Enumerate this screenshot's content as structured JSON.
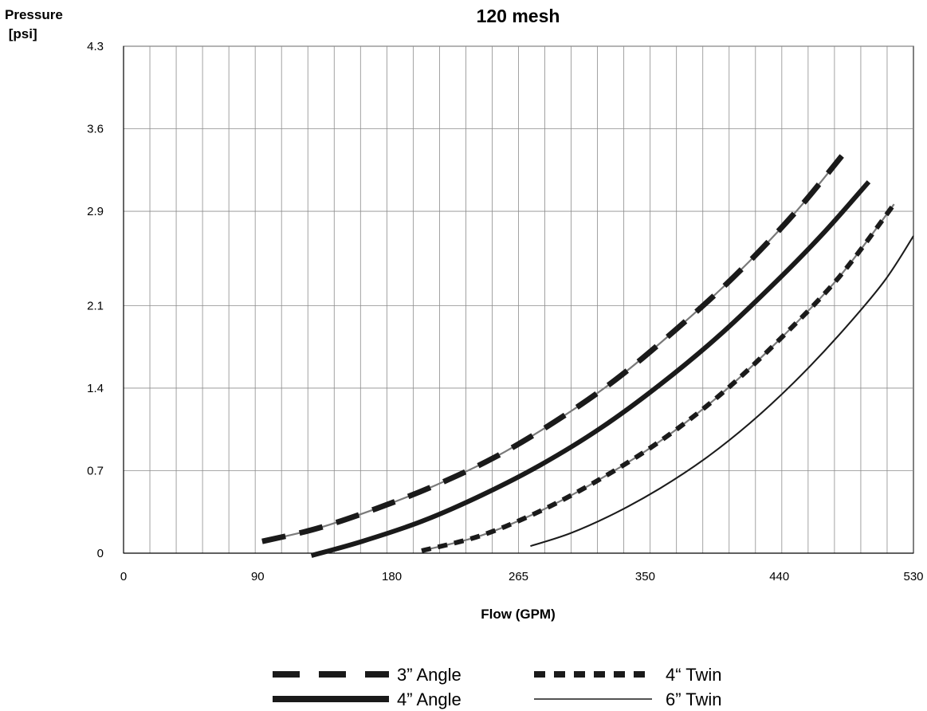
{
  "chart_data": {
    "type": "line",
    "title": "120 mesh",
    "ylabel_lines": [
      "Pressure",
      " [psi]"
    ],
    "xlabel": "Flow (GPM)",
    "xlim": [
      0,
      530
    ],
    "ylim": [
      0,
      4.3
    ],
    "x_tick_labels": [
      {
        "value": 0,
        "label": "0"
      },
      {
        "value": 90,
        "label": "90"
      },
      {
        "value": 180,
        "label": "180"
      },
      {
        "value": 265,
        "label": "265"
      },
      {
        "value": 350,
        "label": "350"
      },
      {
        "value": 440,
        "label": "440"
      },
      {
        "value": 530,
        "label": "530"
      }
    ],
    "y_tick_labels": [
      {
        "value": 0,
        "label": "0"
      },
      {
        "value": 0.7,
        "label": "0.7"
      },
      {
        "value": 1.4,
        "label": "1.4"
      },
      {
        "value": 2.1,
        "label": "2.1"
      },
      {
        "value": 2.9,
        "label": "2.9"
      },
      {
        "value": 3.6,
        "label": "3.6"
      },
      {
        "value": 4.3,
        "label": "4.3"
      }
    ],
    "vertical_gridlines": 30,
    "grid": true,
    "legend_placement": "bottom",
    "series": [
      {
        "name": "3” Angle",
        "style": "long-dash",
        "x": [
          93,
          130,
          170,
          210,
          250,
          290,
          330,
          370,
          410,
          450,
          482
        ],
        "y": [
          0.1,
          0.21,
          0.38,
          0.58,
          0.82,
          1.12,
          1.47,
          1.89,
          2.35,
          2.88,
          3.37
        ]
      },
      {
        "name": "4” Angle",
        "style": "solid-thick",
        "x": [
          126,
          160,
          200,
          240,
          280,
          320,
          360,
          400,
          440,
          470,
          500
        ],
        "y": [
          -0.02,
          0.1,
          0.27,
          0.49,
          0.75,
          1.06,
          1.43,
          1.85,
          2.33,
          2.72,
          3.15
        ]
      },
      {
        "name": "4“ Twin",
        "style": "short-dash",
        "x": [
          200,
          240,
          280,
          320,
          360,
          400,
          440,
          480,
          517
        ],
        "y": [
          0.02,
          0.15,
          0.36,
          0.63,
          0.95,
          1.34,
          1.81,
          2.34,
          2.96
        ]
      },
      {
        "name": "6” Twin",
        "style": "solid-thin",
        "x": [
          273,
          300,
          330,
          360,
          390,
          420,
          450,
          480,
          510,
          530
        ],
        "y": [
          0.06,
          0.17,
          0.34,
          0.55,
          0.8,
          1.1,
          1.45,
          1.85,
          2.3,
          2.69
        ]
      }
    ]
  },
  "colors": {
    "line": "#1a1a1a",
    "highlight": "#7a7a7a",
    "grid": "#8c8c8c"
  }
}
